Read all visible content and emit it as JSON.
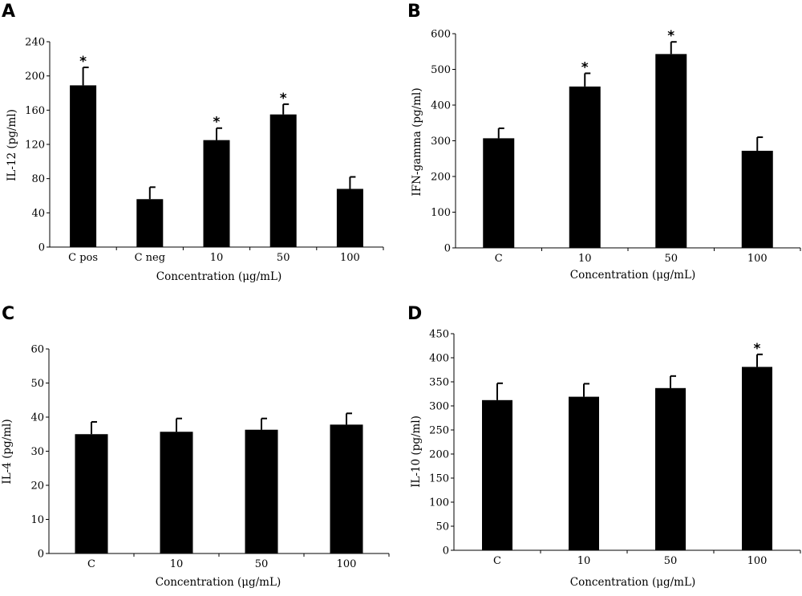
{
  "figure": {
    "background": "#ffffff",
    "bar_color": "#000000"
  },
  "chart_data": [
    {
      "type": "bar",
      "panel": "A",
      "title": "",
      "xlabel": "Concentration (μg/mL)",
      "ylabel": "IL-12 (pg/ml)",
      "categories": [
        "C pos",
        "C neg",
        "10",
        "50",
        "100"
      ],
      "values": [
        189,
        56,
        125,
        155,
        68
      ],
      "error": [
        21,
        14,
        14,
        12,
        14
      ],
      "significant": [
        true,
        false,
        true,
        true,
        false
      ],
      "significance_marker": "*",
      "ylim": [
        0,
        240
      ],
      "yticks": [
        "0",
        "40",
        "80",
        "120",
        "160",
        "200",
        "240"
      ],
      "grid": false,
      "legend": false
    },
    {
      "type": "bar",
      "panel": "B",
      "title": "",
      "xlabel": "Concentration (μg/mL)",
      "ylabel": "IFN-gamma (pg/ml)",
      "categories": [
        "C",
        "10",
        "50",
        "100"
      ],
      "values": [
        307,
        452,
        543,
        272
      ],
      "error": [
        28,
        37,
        34,
        38
      ],
      "significant": [
        false,
        true,
        true,
        false
      ],
      "significance_marker": "*",
      "ylim": [
        0,
        600
      ],
      "yticks": [
        "0",
        "100",
        "200",
        "300",
        "400",
        "500",
        "600"
      ],
      "grid": false,
      "legend": false
    },
    {
      "type": "bar",
      "panel": "C",
      "title": "",
      "xlabel": "Concentration (μg/mL)",
      "ylabel": "IL-4 (pg/ml)",
      "categories": [
        "C",
        "10",
        "50",
        "100"
      ],
      "values": [
        35,
        35.7,
        36.3,
        37.8
      ],
      "error": [
        3.6,
        3.9,
        3.3,
        3.3
      ],
      "significant": [
        false,
        false,
        false,
        false
      ],
      "significance_marker": "*",
      "ylim": [
        0,
        60
      ],
      "yticks": [
        "0",
        "10",
        "20",
        "30",
        "40",
        "50",
        "60"
      ],
      "grid": false,
      "legend": false
    },
    {
      "type": "bar",
      "panel": "D",
      "title": "",
      "xlabel": "Concentration (μg/mL)",
      "ylabel": "IL-10 (pg/ml)",
      "categories": [
        "C",
        "10",
        "50",
        "100"
      ],
      "values": [
        312,
        319,
        337,
        381
      ],
      "error": [
        35,
        27,
        25,
        26
      ],
      "significant": [
        false,
        false,
        false,
        true
      ],
      "significance_marker": "*",
      "ylim": [
        0,
        450
      ],
      "yticks": [
        "0",
        "50",
        "100",
        "150",
        "200",
        "250",
        "300",
        "350",
        "400",
        "450"
      ],
      "grid": false,
      "legend": false
    }
  ]
}
